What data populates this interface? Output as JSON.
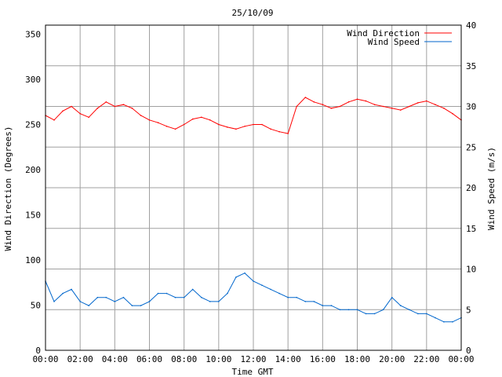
{
  "chart_data": {
    "type": "line",
    "title": "25/10/09",
    "xlabel": "Time GMT",
    "ylabel_left": "Wind Direction (Degrees)",
    "ylabel_right": "Wind Speed (m/s)",
    "x_tick_labels": [
      "00:00",
      "02:00",
      "04:00",
      "06:00",
      "08:00",
      "10:00",
      "12:00",
      "14:00",
      "16:00",
      "18:00",
      "20:00",
      "22:00",
      "00:00"
    ],
    "xlim_hours": [
      0,
      24
    ],
    "ylim_left": [
      0,
      360
    ],
    "ylim_right": [
      0,
      40
    ],
    "y_ticks_left": [
      0,
      50,
      100,
      150,
      200,
      250,
      300,
      350
    ],
    "y_ticks_right": [
      0,
      5,
      10,
      15,
      20,
      25,
      30,
      35,
      40
    ],
    "grid": true,
    "legend_position": "top-right",
    "series": [
      {
        "name": "Wind Direction",
        "axis": "left",
        "color": "#ff0000",
        "x_hours": [
          0,
          0.5,
          1,
          1.5,
          2,
          2.5,
          3,
          3.5,
          4,
          4.5,
          5,
          5.5,
          6,
          6.5,
          7,
          7.5,
          8,
          8.5,
          9,
          9.5,
          10,
          10.5,
          11,
          11.5,
          12,
          12.5,
          13,
          13.5,
          14,
          14.5,
          15,
          15.5,
          16,
          16.5,
          17,
          17.5,
          18,
          18.5,
          19,
          19.5,
          20,
          20.5,
          21,
          21.5,
          22,
          22.5,
          23,
          23.5,
          24
        ],
        "values": [
          260,
          255,
          265,
          270,
          262,
          258,
          268,
          275,
          270,
          272,
          268,
          260,
          255,
          252,
          248,
          245,
          250,
          256,
          258,
          255,
          250,
          247,
          245,
          248,
          250,
          250,
          245,
          242,
          240,
          270,
          280,
          275,
          272,
          268,
          270,
          275,
          278,
          276,
          272,
          270,
          268,
          266,
          270,
          274,
          276,
          272,
          268,
          262,
          255
        ]
      },
      {
        "name": "Wind Speed",
        "axis": "right",
        "color": "#0066cc",
        "x_hours": [
          0,
          0.5,
          1,
          1.5,
          2,
          2.5,
          3,
          3.5,
          4,
          4.5,
          5,
          5.5,
          6,
          6.5,
          7,
          7.5,
          8,
          8.5,
          9,
          9.5,
          10,
          10.5,
          11,
          11.5,
          12,
          12.5,
          13,
          13.5,
          14,
          14.5,
          15,
          15.5,
          16,
          16.5,
          17,
          17.5,
          18,
          18.5,
          19,
          19.5,
          20,
          20.5,
          21,
          21.5,
          22,
          22.5,
          23,
          23.5,
          24
        ],
        "values": [
          8.5,
          6,
          7,
          7.5,
          6,
          5.5,
          6.5,
          6.5,
          6,
          6.5,
          5.5,
          5.5,
          6,
          7,
          7,
          6.5,
          6.5,
          7.5,
          6.5,
          6,
          6,
          7,
          9,
          9.5,
          8.5,
          8,
          7.5,
          7,
          6.5,
          6.5,
          6,
          6,
          5.5,
          5.5,
          5,
          5,
          5,
          4.5,
          4.5,
          5,
          6.5,
          5.5,
          5,
          4.5,
          4.5,
          4,
          3.5,
          3.5,
          4
        ]
      }
    ]
  }
}
